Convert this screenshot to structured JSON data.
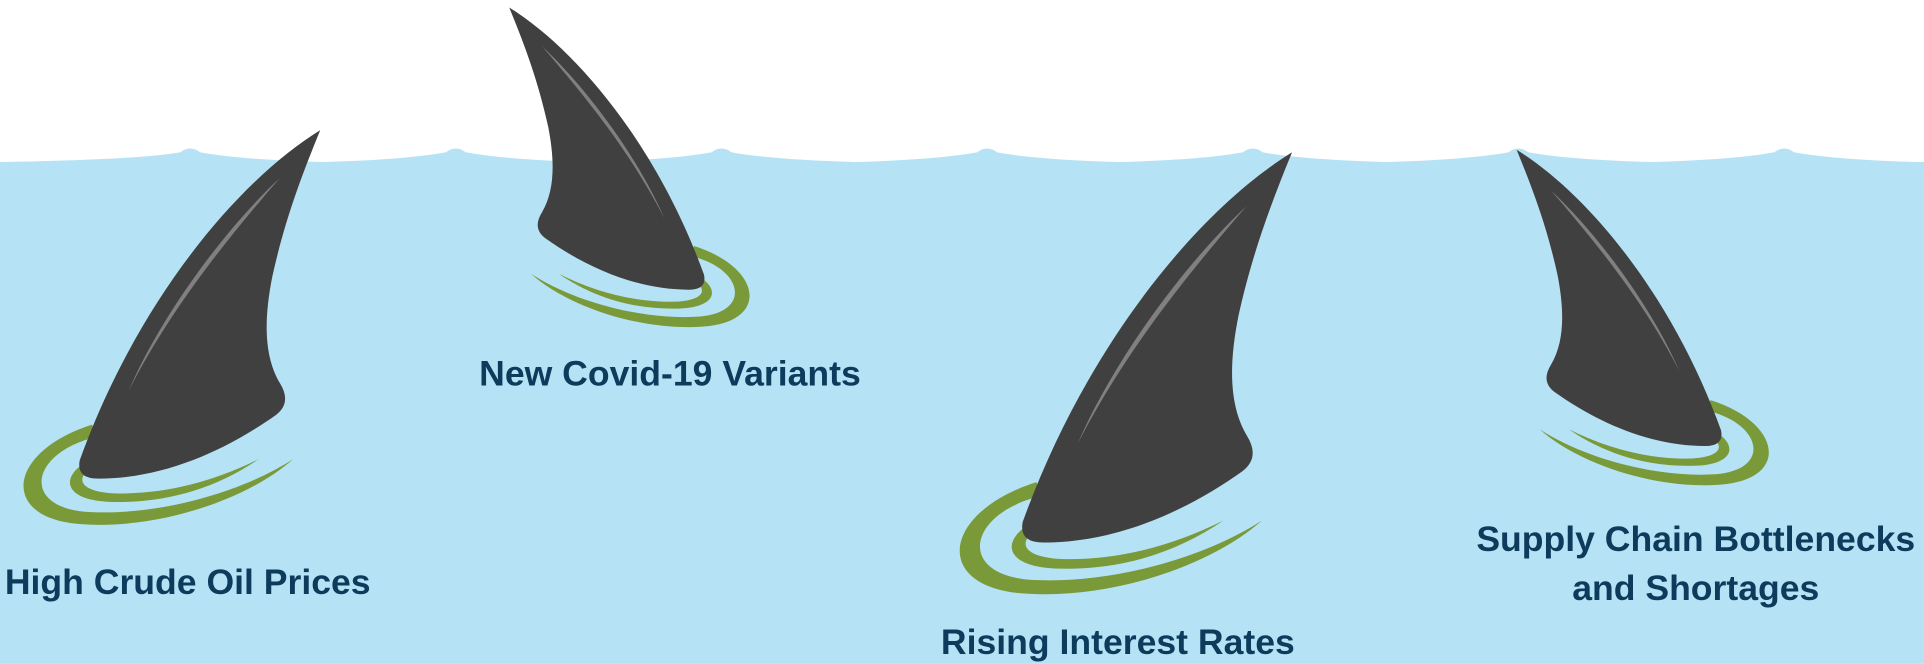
{
  "risks": [
    {
      "label": [
        "High Crude Oil Prices"
      ]
    },
    {
      "label": [
        "New Covid-19 Variants"
      ]
    },
    {
      "label": [
        "Rising Interest Rates"
      ]
    },
    {
      "label": [
        "Supply Chain Bottlenecks",
        "and Shortages"
      ]
    }
  ]
}
